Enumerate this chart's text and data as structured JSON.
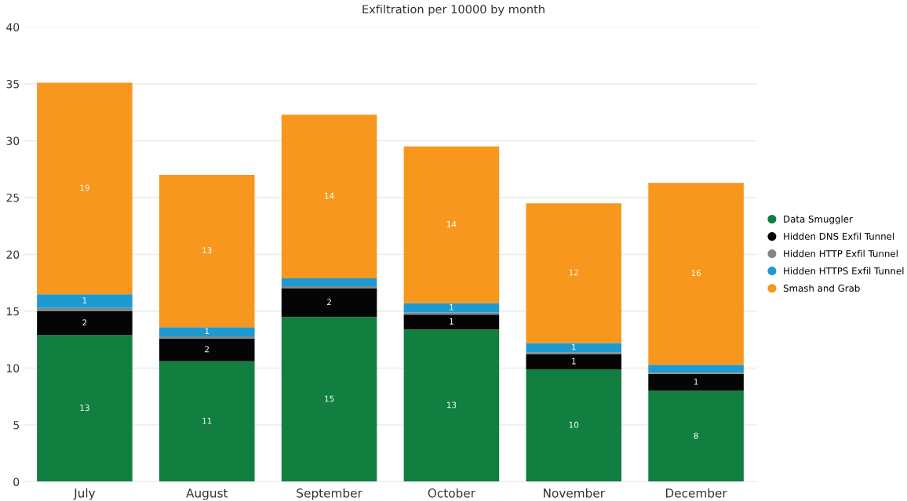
{
  "chart_data": {
    "type": "bar",
    "title": "Exfiltration per 10000 by month",
    "stacked": true,
    "categories": [
      "July",
      "August",
      "September",
      "October",
      "November",
      "December"
    ],
    "series": [
      {
        "name": "Data Smuggler",
        "color": "#107f40",
        "values": [
          12.9,
          10.6,
          14.5,
          13.4,
          9.9,
          8.0
        ],
        "value_labels": [
          "13",
          "11",
          "15",
          "13",
          "10",
          "8"
        ]
      },
      {
        "name": "Hidden DNS Exfil Tunnel",
        "color": "#050505",
        "values": [
          2.1,
          2.0,
          2.5,
          1.3,
          1.3,
          1.5
        ],
        "value_labels": [
          "2",
          "2",
          "2",
          "1",
          "1",
          "1"
        ]
      },
      {
        "name": "Hidden HTTP Exfil Tunnel",
        "color": "#85868a",
        "values": [
          0.3,
          0.2,
          0.2,
          0.2,
          0.2,
          0.1
        ]
      },
      {
        "name": "Hidden HTTPS Exfil Tunnel",
        "color": "#1e9ad0",
        "values": [
          1.2,
          0.8,
          0.7,
          0.8,
          0.8,
          0.7
        ],
        "value_labels": [
          "1",
          "1",
          null,
          "1",
          "1",
          null
        ]
      },
      {
        "name": "Smash and Grab",
        "color": "#f7971e",
        "values": [
          18.6,
          13.4,
          14.4,
          13.8,
          12.3,
          16.0
        ],
        "value_labels": [
          "19",
          "13",
          "14",
          "14",
          "12",
          "16"
        ]
      }
    ],
    "ylim": [
      0,
      40
    ],
    "yticks": [
      0,
      5,
      10,
      15,
      20,
      25,
      30,
      35,
      40
    ],
    "grid": "y",
    "legend": "right"
  }
}
